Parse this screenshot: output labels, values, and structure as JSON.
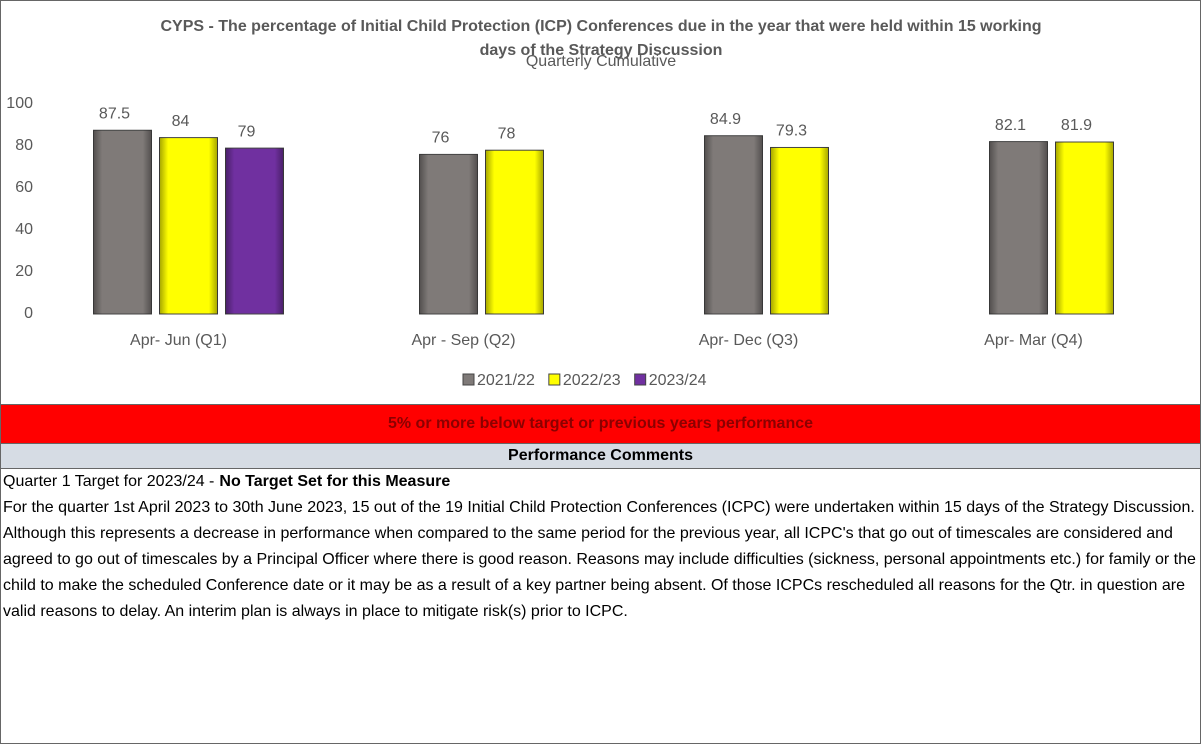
{
  "chart_data": {
    "type": "bar",
    "title": "CYPS -  The percentage of Initial Child Protection (ICP) Conferences due in the year that were held within 15 working days of the Strategy Discussion",
    "subtitle": "Quarterly Cumulative",
    "categories": [
      "Apr- Jun  (Q1)",
      "Apr - Sep  (Q2)",
      "Apr- Dec   (Q3)",
      "Apr- Mar  (Q4)"
    ],
    "series": [
      {
        "name": "2021/22",
        "color": "#7f7a78",
        "values": [
          87.5,
          76,
          84.9,
          82.1
        ]
      },
      {
        "name": "2022/23",
        "color": "#ffff00",
        "values": [
          84,
          78,
          79.3,
          81.9
        ]
      },
      {
        "name": "2023/24",
        "color": "#7030a0",
        "values": [
          79,
          null,
          null,
          null
        ]
      }
    ],
    "ylim": [
      0,
      100
    ],
    "yticks": [
      0,
      20,
      40,
      60,
      80,
      100
    ],
    "grid": false,
    "legend": "bottom"
  },
  "banner": "5% or more below target or previous years performance",
  "comments": {
    "header": "Performance Comments",
    "target_label": "Quarter 1 Target for 2023/24 -",
    "target_value": "No Target Set for this Measure",
    "text": "For the quarter 1st April 2023 to 30th June 2023, 15 out of the 19 Initial Child Protection Conferences (ICPC) were undertaken within 15 days of the Strategy Discussion. Although this represents a decrease in performance when compared to the same period for the previous year, all ICPC's that go out of timescales are considered and agreed to go out of timescales by a Principal Officer where there is good reason. Reasons may include difficulties (sickness, personal appointments etc.) for family or the child to make the scheduled Conference date or it may be as a result of a key partner being absent. Of those ICPCs rescheduled all reasons for the Qtr. in question are valid reasons to delay. An interim plan is always in place to mitigate risk(s) prior to ICPC."
  }
}
